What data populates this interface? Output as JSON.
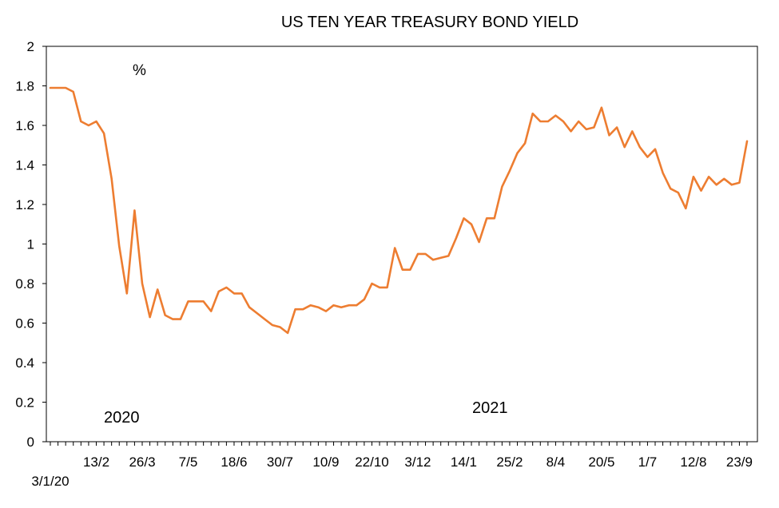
{
  "chart_data": {
    "type": "line",
    "title": "US TEN YEAR TREASURY BOND YIELD",
    "unit_label": "%",
    "annotations": [
      "2020",
      "2021"
    ],
    "first_x_label": "3/1/20",
    "x_tick_labels": [
      {
        "index": 6,
        "label": "13/2"
      },
      {
        "index": 12,
        "label": "26/3"
      },
      {
        "index": 18,
        "label": "7/5"
      },
      {
        "index": 24,
        "label": "18/6"
      },
      {
        "index": 30,
        "label": "30/7"
      },
      {
        "index": 36,
        "label": "10/9"
      },
      {
        "index": 42,
        "label": "22/10"
      },
      {
        "index": 48,
        "label": "3/12"
      },
      {
        "index": 54,
        "label": "14/1"
      },
      {
        "index": 60,
        "label": "25/2"
      },
      {
        "index": 66,
        "label": "8/4"
      },
      {
        "index": 72,
        "label": "20/5"
      },
      {
        "index": 78,
        "label": "1/7"
      },
      {
        "index": 84,
        "label": "12/8"
      },
      {
        "index": 90,
        "label": "23/9"
      }
    ],
    "ylim": [
      0,
      2
    ],
    "y_ticks": [
      "0",
      "0.2",
      "0.4",
      "0.6",
      "0.8",
      "1",
      "1.2",
      "1.4",
      "1.6",
      "1.8",
      "2"
    ],
    "series": [
      {
        "color": "#ED7D31",
        "values": [
          1.79,
          1.79,
          1.79,
          1.77,
          1.62,
          1.6,
          1.62,
          1.56,
          1.33,
          0.99,
          0.75,
          1.17,
          0.8,
          0.63,
          0.77,
          0.64,
          0.62,
          0.62,
          0.71,
          0.71,
          0.71,
          0.66,
          0.76,
          0.78,
          0.75,
          0.75,
          0.68,
          0.65,
          0.62,
          0.59,
          0.58,
          0.55,
          0.67,
          0.67,
          0.69,
          0.68,
          0.66,
          0.69,
          0.68,
          0.69,
          0.69,
          0.72,
          0.8,
          0.78,
          0.78,
          0.98,
          0.87,
          0.87,
          0.95,
          0.95,
          0.92,
          0.93,
          0.94,
          1.03,
          1.13,
          1.1,
          1.01,
          1.13,
          1.13,
          1.29,
          1.37,
          1.46,
          1.51,
          1.66,
          1.62,
          1.62,
          1.65,
          1.62,
          1.57,
          1.62,
          1.58,
          1.59,
          1.69,
          1.55,
          1.59,
          1.49,
          1.57,
          1.49,
          1.44,
          1.48,
          1.36,
          1.28,
          1.26,
          1.18,
          1.34,
          1.27,
          1.34,
          1.3,
          1.33,
          1.3,
          1.31,
          1.52
        ]
      }
    ]
  }
}
